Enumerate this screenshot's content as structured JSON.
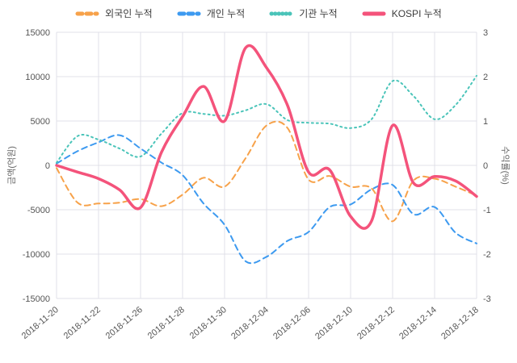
{
  "chart_data": {
    "type": "line",
    "title": "",
    "xlabel": "",
    "ylabel_left": "금액(억원)",
    "ylabel_right": "수익률(%)",
    "grid": true,
    "legend_position": "top",
    "x_tick_step": 2,
    "x": [
      "2018-11-20",
      "2018-11-21",
      "2018-11-22",
      "2018-11-23",
      "2018-11-26",
      "2018-11-27",
      "2018-11-28",
      "2018-11-29",
      "2018-11-30",
      "2018-12-03",
      "2018-12-04",
      "2018-12-05",
      "2018-12-06",
      "2018-12-07",
      "2018-12-10",
      "2018-12-11",
      "2018-12-12",
      "2018-12-13",
      "2018-12-14",
      "2018-12-17",
      "2018-12-18"
    ],
    "y_left": {
      "min": -15000,
      "max": 15000,
      "ticks": [
        15000,
        10000,
        5000,
        0,
        -5000,
        -10000,
        -15000
      ]
    },
    "y_right": {
      "min": -3,
      "max": 3,
      "ticks": [
        3,
        2,
        1,
        0,
        -1,
        -2,
        -3
      ]
    },
    "series": [
      {
        "key": "foreign",
        "name": "외국인 누적",
        "axis": "left",
        "style": "dashed",
        "color": "#f7a24a",
        "values": [
          -300,
          -4200,
          -4300,
          -4200,
          -3800,
          -4600,
          -3300,
          -1400,
          -2400,
          800,
          4500,
          4200,
          -1600,
          -1200,
          -2400,
          -2600,
          -6300,
          -1700,
          -1500,
          -2400,
          -3400
        ]
      },
      {
        "key": "individual",
        "name": "개인 누적",
        "axis": "left",
        "style": "dashed",
        "color": "#3d9af0",
        "values": [
          200,
          1600,
          2600,
          3400,
          1900,
          300,
          -1100,
          -4300,
          -6700,
          -10800,
          -10300,
          -8500,
          -7500,
          -4700,
          -4400,
          -2700,
          -2200,
          -5500,
          -4700,
          -7600,
          -8800
        ]
      },
      {
        "key": "institution",
        "name": "기관 누적",
        "axis": "left",
        "style": "dotted",
        "color": "#4ac4b9",
        "values": [
          300,
          3300,
          2900,
          1900,
          1000,
          3600,
          5900,
          5800,
          5600,
          6200,
          6900,
          5100,
          4800,
          4700,
          4200,
          5200,
          9500,
          7800,
          5200,
          6800,
          10100
        ]
      },
      {
        "key": "kospi",
        "name": "KOSPI 누적",
        "axis": "right",
        "style": "solid",
        "color": "#f4537b",
        "values": [
          0,
          -0.15,
          -0.3,
          -0.55,
          -0.95,
          0.3,
          1.1,
          1.78,
          1.0,
          2.65,
          2.2,
          1.35,
          -0.15,
          -0.1,
          -1.15,
          -1.25,
          0.9,
          -0.4,
          -0.25,
          -0.35,
          -0.7
        ]
      }
    ]
  }
}
